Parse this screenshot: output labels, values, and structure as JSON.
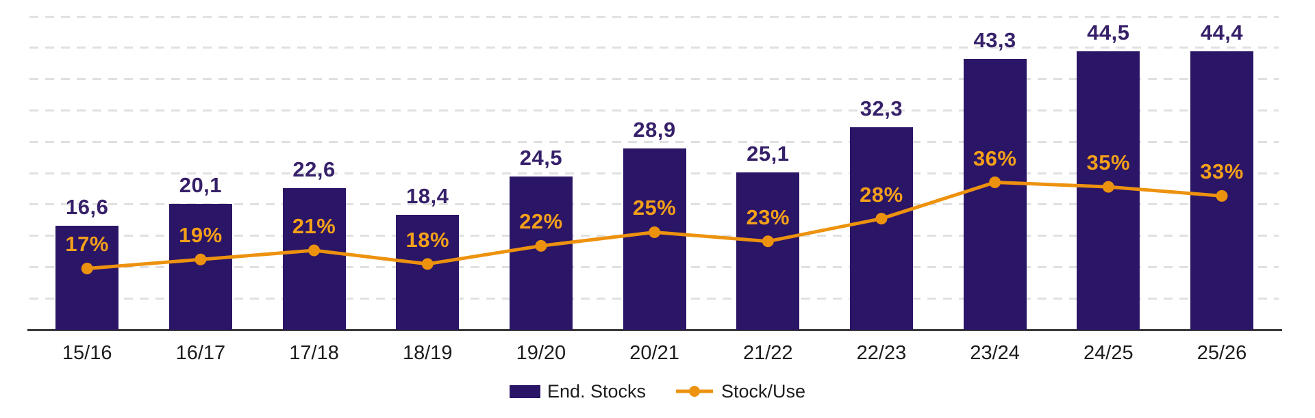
{
  "chart_data": {
    "type": "bar",
    "subtype": "bar-and-line-combo",
    "title": "",
    "xlabel": "",
    "ylabel": "",
    "categories": [
      "15/16",
      "16/17",
      "17/18",
      "18/19",
      "19/20",
      "20/21",
      "21/22",
      "22/23",
      "23/24",
      "24/25",
      "25/26"
    ],
    "series": [
      {
        "name": "End. Stocks",
        "type": "bar",
        "color": "#2B1566",
        "values": [
          16.6,
          20.1,
          22.6,
          18.4,
          24.5,
          28.9,
          25.1,
          32.3,
          43.3,
          44.5,
          44.4
        ],
        "labels": [
          "16,6",
          "20,1",
          "22,6",
          "18,4",
          "24,5",
          "28,9",
          "25,1",
          "32,3",
          "43,3",
          "44,5",
          "44,4"
        ]
      },
      {
        "name": "Stock/Use",
        "type": "line",
        "color": "#ED920E",
        "values": [
          17,
          19,
          21,
          18,
          22,
          25,
          23,
          28,
          36,
          35,
          33
        ],
        "labels": [
          "17%",
          "19%",
          "21%",
          "18%",
          "22%",
          "25%",
          "23%",
          "28%",
          "36%",
          "35%",
          "33%"
        ]
      }
    ],
    "ylim": [
      0,
      50
    ],
    "grid": "horizontal-dashed",
    "gridline_interval": 5,
    "legend_position": "bottom-center"
  },
  "colors": {
    "bar": "#2B1566",
    "bar_label": "#362069",
    "line": "#ED920E",
    "pct_label": "#F4A01A",
    "gridline": "#e0e0e0",
    "axis": "#3a3a3a",
    "x_label": "#1c1c1c",
    "background": "#ffffff"
  }
}
